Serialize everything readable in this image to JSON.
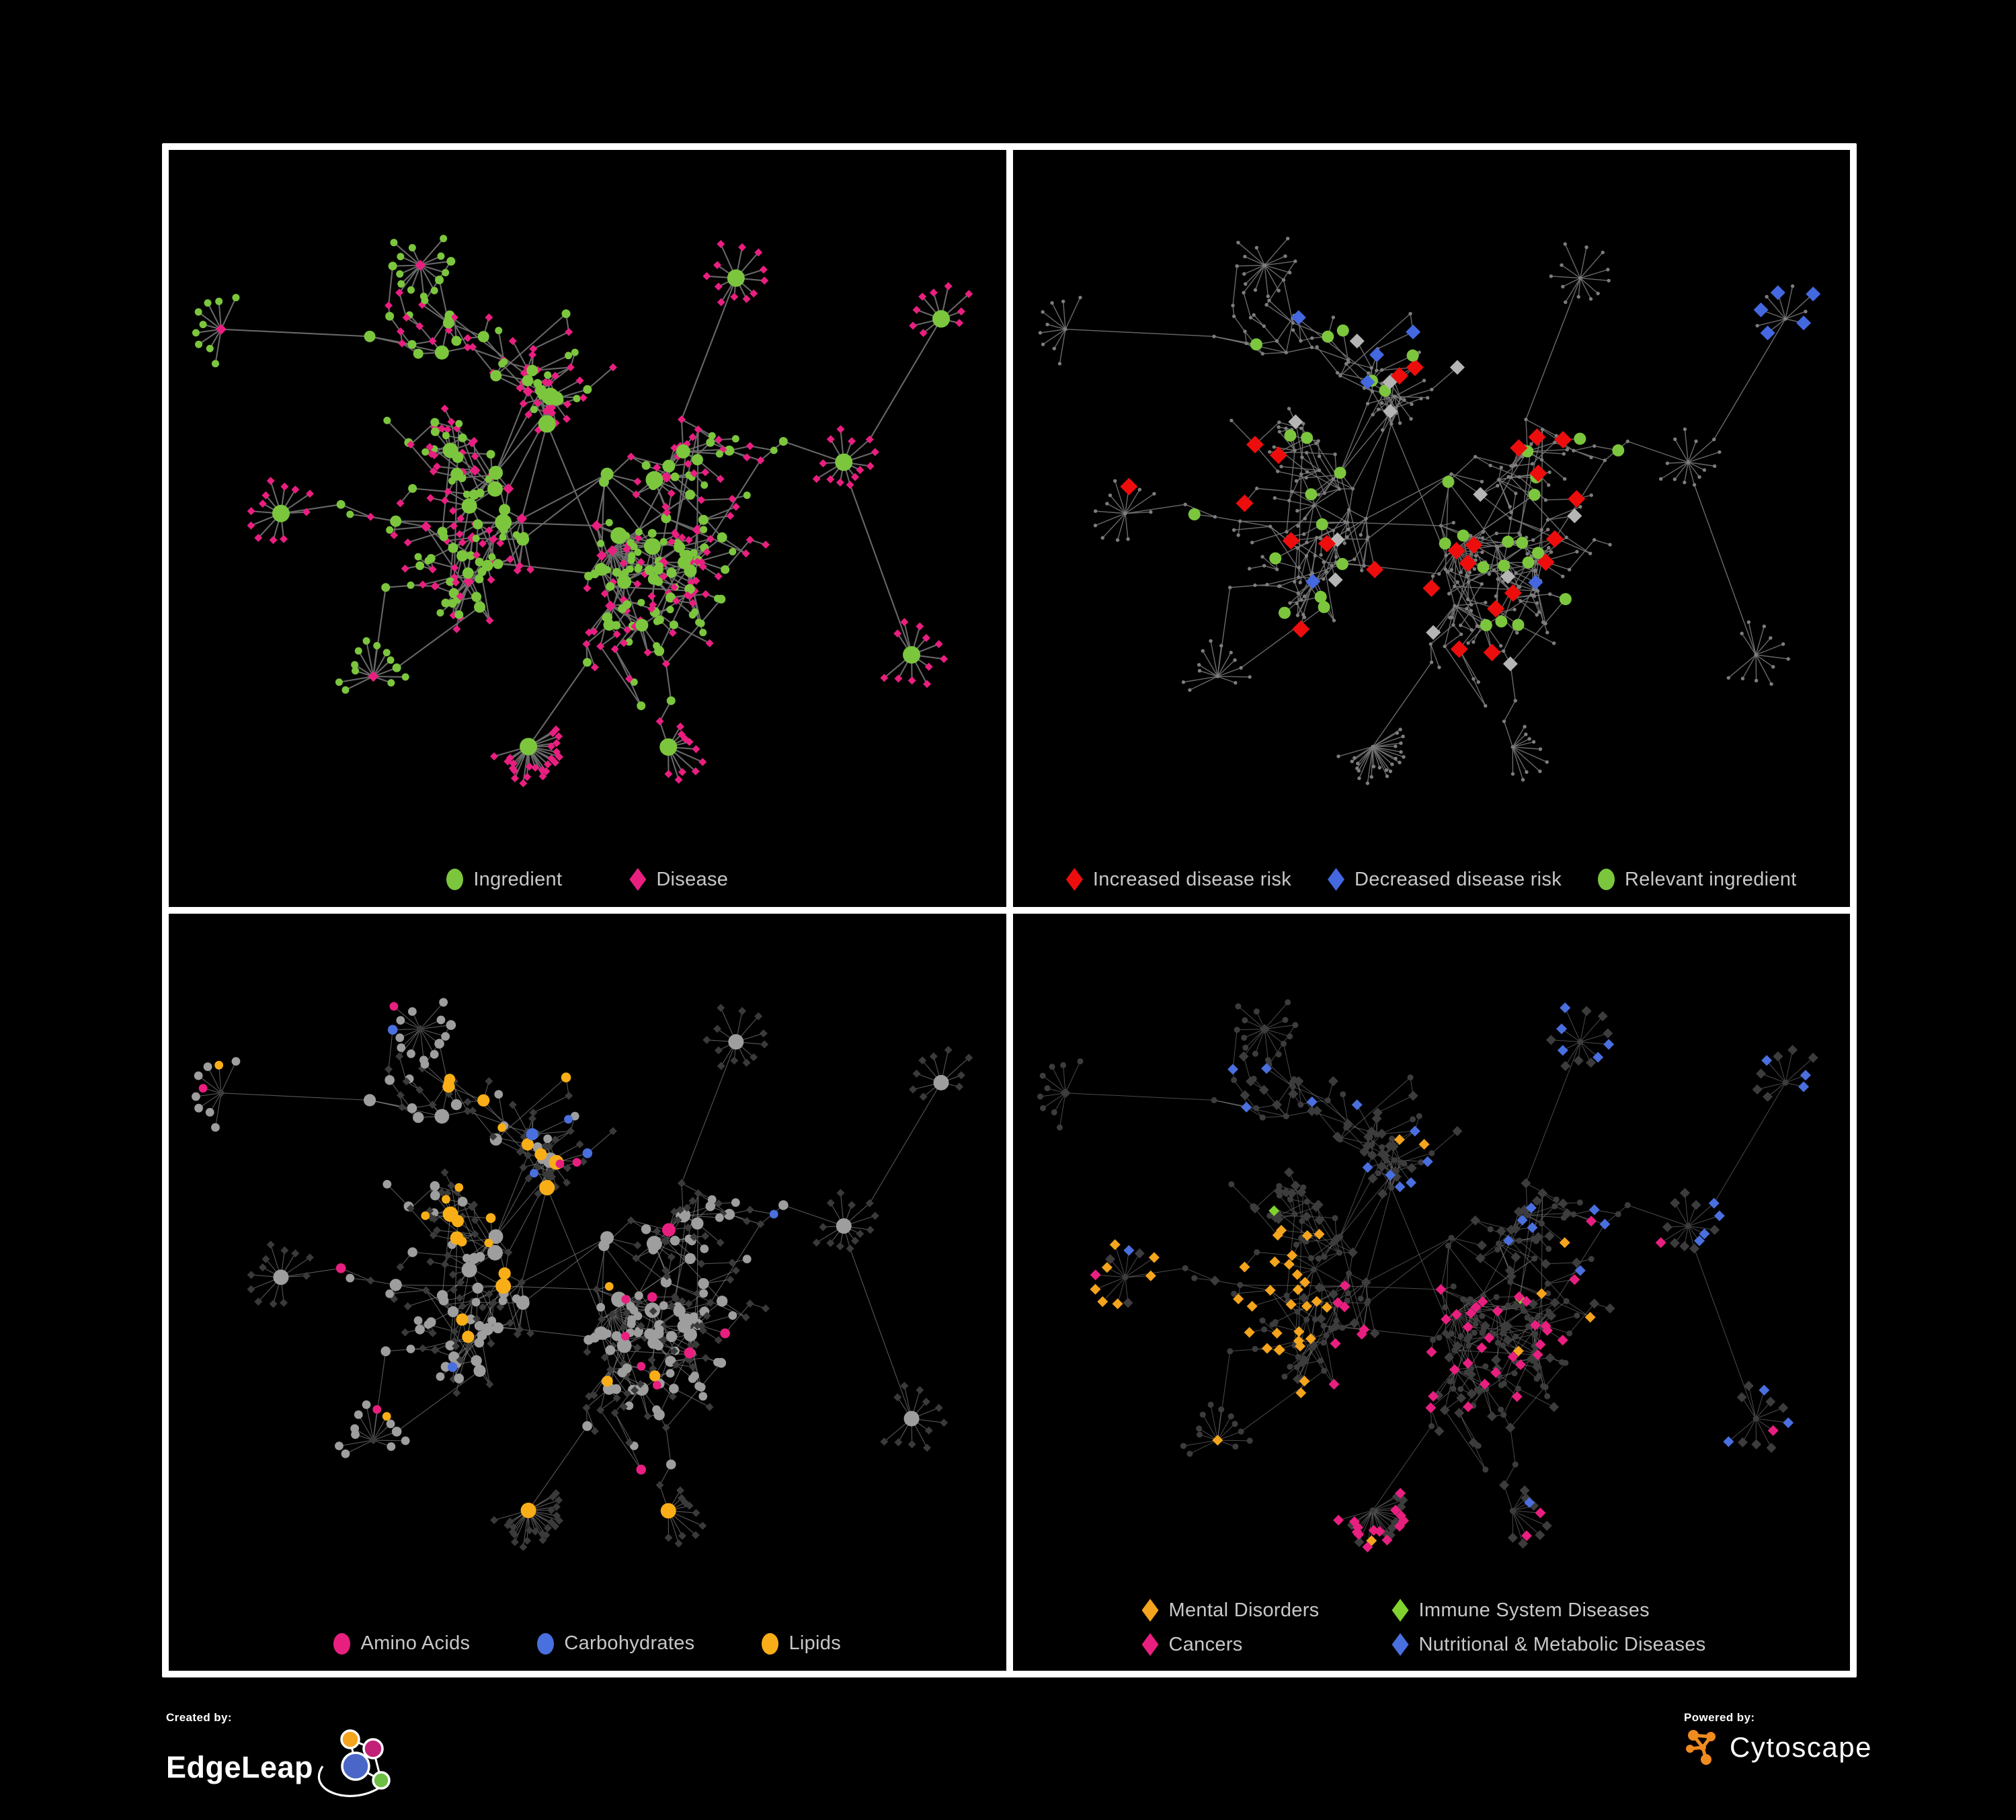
{
  "figure": {
    "background": "#000000",
    "frame_color": "#FFFFFF",
    "legend_text_color": "#C8C8C8"
  },
  "panels": [
    {
      "id": "ingredient-disease",
      "legend": [
        {
          "shape": "circle",
          "color": "#7CC63E",
          "label": "Ingredient"
        },
        {
          "shape": "diamond",
          "color": "#E91F80",
          "label": "Disease"
        }
      ],
      "style": {
        "edge": "#6D6D6D",
        "edge_width": 2.1,
        "edge_opacity": 0.95,
        "ingredient": "#7CC63E",
        "disease": "#E91F80"
      }
    },
    {
      "id": "disease-risk",
      "legend": [
        {
          "shape": "diamond",
          "color": "#EE0D0D",
          "label": "Increased disease risk"
        },
        {
          "shape": "diamond",
          "color": "#4468E0",
          "label": "Decreased disease risk"
        },
        {
          "shape": "circle",
          "color": "#7CC63E",
          "label": "Relevant ingredient"
        }
      ],
      "style": {
        "edge": "#757575",
        "edge_width": 1.4,
        "edge_opacity": 0.9,
        "base": "#7D7D7D",
        "increased": "#EE0D0D",
        "decreased": "#4468E0",
        "neutral": "#B5B5B5",
        "relevant": "#7CC63E"
      }
    },
    {
      "id": "ingredient-classes",
      "legend": [
        {
          "shape": "circle",
          "color": "#E91F80",
          "label": "Amino Acids"
        },
        {
          "shape": "circle",
          "color": "#4A6FDE",
          "label": "Carbohydrates"
        },
        {
          "shape": "circle",
          "color": "#F9AE17",
          "label": "Lipids"
        }
      ],
      "style": {
        "edge": "#8C8C8C",
        "edge_width": 1.1,
        "edge_opacity": 0.62,
        "other_ingredient": "#9E9E9E",
        "disease_dim": "#3A3A3A",
        "amino": "#E91F80",
        "carb": "#4A6FDE",
        "lipid": "#F9AE17"
      }
    },
    {
      "id": "disease-categories",
      "legend_columns": 2,
      "legend": [
        {
          "shape": "diamond",
          "color": "#F5A41D",
          "label": "Mental Disorders"
        },
        {
          "shape": "diamond",
          "color": "#82D22F",
          "label": "Immune System Diseases"
        },
        {
          "shape": "diamond",
          "color": "#E91F80",
          "label": "Cancers"
        },
        {
          "shape": "diamond",
          "color": "#4A6FDE",
          "label": "Nutritional & Metabolic Diseases"
        }
      ],
      "style": {
        "edge": "#7C7C7C",
        "edge_width": 1.0,
        "edge_opacity": 0.6,
        "ingredient_dim": "#3C3C3C",
        "disease_dim": "#3C3C3C",
        "mental": "#F5A41D",
        "immune": "#82D22F",
        "cancer": "#E91F80",
        "nutritional": "#4A6FDE"
      }
    }
  ],
  "footer": {
    "created_by_label": "Created by:",
    "brand": "EdgeLeap",
    "powered_by_label": "Powered by:",
    "engine": "Cytoscape",
    "cytoscape_orange": "#EF8B1F",
    "edgeleap_logo_colors": {
      "orange": "#F5A41D",
      "magenta": "#C32178",
      "blue": "#4A67C8",
      "green": "#6CBE45"
    }
  },
  "chart_data": {
    "type": "network",
    "description": "Four-panel figure showing the same ingredient-disease association network (black background, organic force-directed hairball layout with dendritic branches and leaf fans) recolored in each panel.",
    "layout": "organic / force-directed; dense hub cluster near center, radiating branches, star-shaped leaf fans",
    "approx_nodes": 540,
    "approx_edges": 620,
    "panels": [
      {
        "panel": "top-left",
        "emphasis": "node type",
        "classes": [
          {
            "label": "Ingredient",
            "shape": "circle",
            "color": "#7CC63E"
          },
          {
            "label": "Disease",
            "shape": "diamond",
            "color": "#E91F80"
          }
        ]
      },
      {
        "panel": "top-right",
        "emphasis": "disease risk",
        "classes": [
          {
            "label": "Increased disease risk",
            "shape": "diamond",
            "color": "#EE0D0D",
            "approx_count": 28
          },
          {
            "label": "Decreased disease risk",
            "shape": "diamond",
            "color": "#4468E0",
            "approx_count": 9
          },
          {
            "label": "Relevant ingredient",
            "shape": "circle",
            "color": "#7CC63E",
            "approx_count": 18
          },
          {
            "label": "unhighlighted node",
            "shape": "dot",
            "color": "#7D7D7D"
          },
          {
            "label": "neutral disease",
            "shape": "diamond",
            "color": "#B5B5B5",
            "approx_count": 7
          }
        ]
      },
      {
        "panel": "bottom-left",
        "emphasis": "ingredient chemical class",
        "classes": [
          {
            "label": "Amino Acids",
            "shape": "circle",
            "color": "#E91F80"
          },
          {
            "label": "Carbohydrates",
            "shape": "circle",
            "color": "#4A6FDE"
          },
          {
            "label": "Lipids",
            "shape": "circle",
            "color": "#F9AE17"
          },
          {
            "label": "other ingredient",
            "shape": "circle",
            "color": "#9E9E9E"
          },
          {
            "label": "disease (dimmed)",
            "shape": "diamond",
            "color": "#3A3A3A"
          }
        ]
      },
      {
        "panel": "bottom-right",
        "emphasis": "disease category",
        "classes": [
          {
            "label": "Mental Disorders",
            "shape": "diamond",
            "color": "#F5A41D"
          },
          {
            "label": "Immune System Diseases",
            "shape": "diamond",
            "color": "#82D22F"
          },
          {
            "label": "Cancers",
            "shape": "diamond",
            "color": "#E91F80"
          },
          {
            "label": "Nutritional & Metabolic Diseases",
            "shape": "diamond",
            "color": "#4A6FDE"
          },
          {
            "label": "other disease (dimmed)",
            "shape": "diamond",
            "color": "#3C3C3C"
          }
        ]
      }
    ]
  }
}
